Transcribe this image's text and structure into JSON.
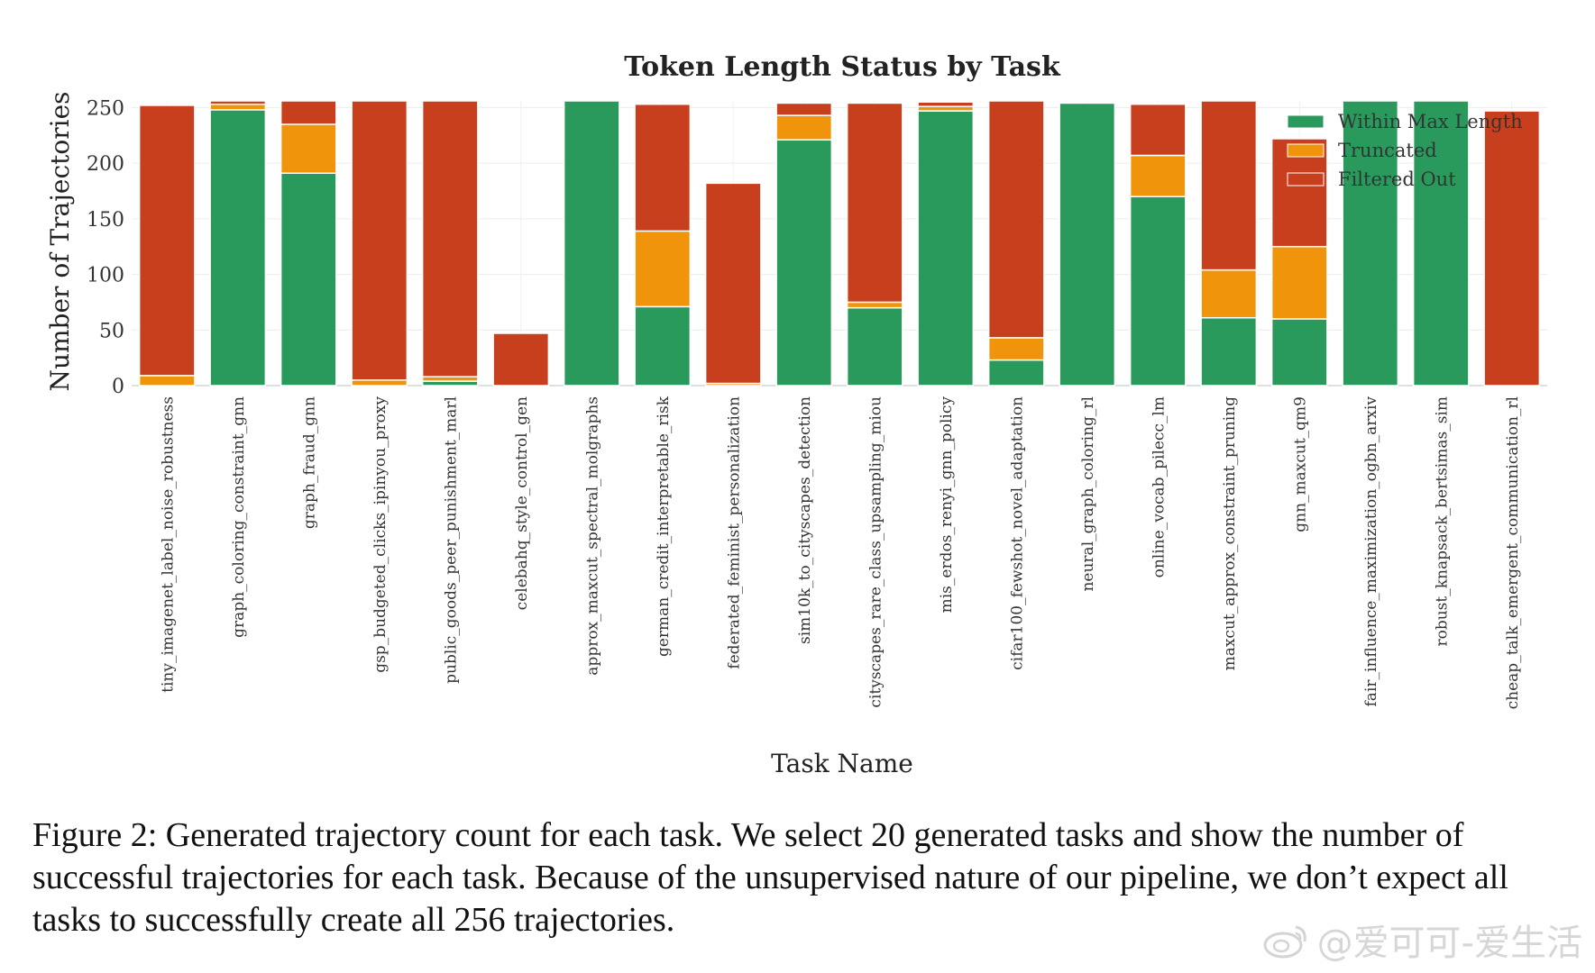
{
  "chart_data": {
    "type": "bar",
    "stacked": true,
    "title": "Token Length Status by Task",
    "xlabel": "Task Name",
    "ylabel": "Number of Trajectories",
    "ylim": [
      0,
      256
    ],
    "yticks": [
      0,
      50,
      100,
      150,
      200,
      250
    ],
    "grid": true,
    "legend_position": "top-right",
    "categories": [
      "tiny_imagenet_label_noise_robustness",
      "graph_coloring_constraint_gnn",
      "graph_fraud_gnn",
      "gsp_budgeted_clicks_ipinyou_proxy",
      "public_goods_peer_punishment_marl",
      "celebahq_style_control_gen",
      "approx_maxcut_spectral_molgraphs",
      "german_credit_interpretable_risk",
      "federated_feminist_personalization",
      "sim10k_to_cityscapes_detection",
      "cityscapes_rare_class_upsampling_miou",
      "mis_erdos_renyi_gnn_policy",
      "cifar100_fewshot_novel_adaptation",
      "neural_graph_coloring_rl",
      "online_vocab_pilecc_lm",
      "maxcut_approx_constraint_pruning",
      "gnn_maxcut_qm9",
      "fair_influence_maximization_ogbn_arxiv",
      "robust_knapsack_bertsimas_sim",
      "cheap_talk_emergent_communication_rl"
    ],
    "series": [
      {
        "name": "Within Max Length",
        "color": "#2a9a5c",
        "values": [
          0,
          248,
          191,
          0,
          4,
          0,
          256,
          71,
          0,
          221,
          70,
          247,
          23,
          254,
          170,
          61,
          60,
          256,
          256,
          0
        ]
      },
      {
        "name": "Truncated",
        "color": "#f0940c",
        "values": [
          9,
          5,
          44,
          5,
          4,
          0,
          0,
          68,
          2,
          22,
          5,
          4,
          20,
          0,
          37,
          43,
          65,
          0,
          0,
          0
        ]
      },
      {
        "name": "Filtered Out",
        "color": "#c83f1e",
        "values": [
          243,
          3,
          21,
          251,
          248,
          47,
          0,
          114,
          180,
          11,
          179,
          4,
          213,
          0,
          46,
          152,
          97,
          0,
          0,
          247
        ]
      }
    ]
  },
  "caption": "Figure 2: Generated trajectory count for each task. We select 20 generated tasks and show the number of successful trajectories for each task. Because of the unsupervised nature of our pipeline, we don’t expect all tasks to successfully create all 256 trajectories.",
  "watermark": "@爱可可-爱生活"
}
